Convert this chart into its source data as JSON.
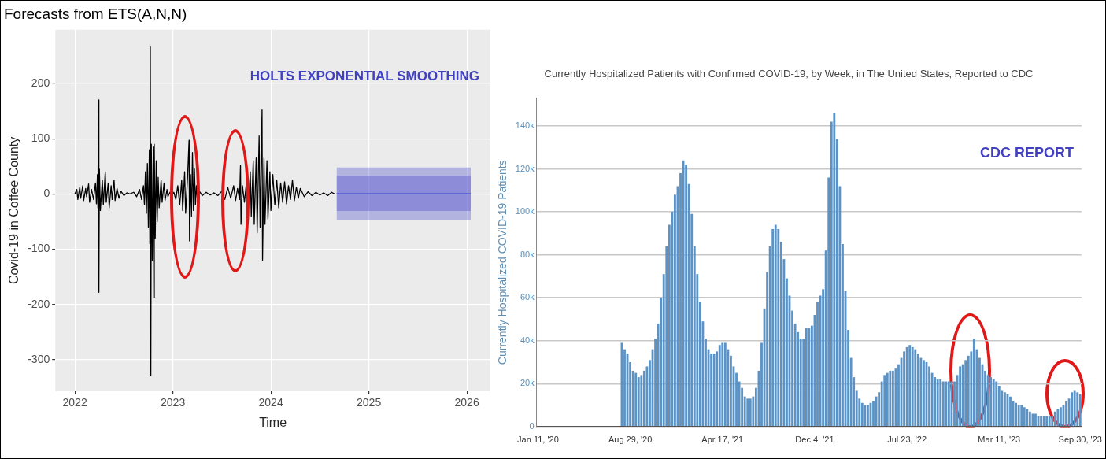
{
  "chart_data": [
    {
      "type": "line",
      "title": "Forecasts from ETS(A,N,N)",
      "xlabel": "Time",
      "ylabel": "Covid-19 in Coffee County",
      "annotations": [
        "HOLTS EXPONENTIAL SMOOTHING"
      ],
      "xlim": [
        2021.8,
        2026.24
      ],
      "xticks": [
        2022,
        2023,
        2024,
        2025,
        2026
      ],
      "ylim": [
        -357,
        297
      ],
      "yticks": [
        -300,
        -200,
        -100,
        0,
        100,
        200
      ],
      "grid": true,
      "series": [
        {
          "color": "#000000",
          "x": [
            2022.0,
            2022.02,
            2022.03,
            2022.05,
            2022.06,
            2022.08,
            2022.09,
            2022.11,
            2022.12,
            2022.14,
            2022.15,
            2022.17,
            2022.19,
            2022.21,
            2022.22,
            2022.23,
            2022.235,
            2022.24,
            2022.245,
            2022.25,
            2022.26,
            2022.28,
            2022.29,
            2022.31,
            2022.32,
            2022.34,
            2022.35,
            2022.37,
            2022.38,
            2022.4,
            2022.41,
            2022.43,
            2022.45,
            2022.47,
            2022.5,
            2022.53,
            2022.56,
            2022.6,
            2022.63,
            2022.66,
            2022.68,
            2022.7,
            2022.71,
            2022.72,
            2022.73,
            2022.74,
            2022.75,
            2022.76,
            2022.765,
            2022.77,
            2022.775,
            2022.78,
            2022.79,
            2022.8,
            2022.805,
            2022.81,
            2022.82,
            2022.83,
            2022.84,
            2022.85,
            2022.86,
            2022.88,
            2022.89,
            2022.91,
            2022.92,
            2022.94,
            2022.95,
            2022.97,
            2022.99,
            2023.01,
            2023.03,
            2023.05,
            2023.07,
            2023.09,
            2023.1,
            2023.12,
            2023.13,
            2023.15,
            2023.165,
            2023.17,
            2023.18,
            2023.19,
            2023.2,
            2023.21,
            2023.22,
            2023.23,
            2023.24,
            2023.25,
            2023.27,
            2023.3,
            2023.34,
            2023.38,
            2023.42,
            2023.46,
            2023.5,
            2023.53,
            2023.56,
            2023.59,
            2023.62,
            2023.64,
            2023.66,
            2023.68,
            2023.69,
            2023.695,
            2023.71,
            2023.73,
            2023.75,
            2023.77,
            2023.79,
            2023.8,
            2023.82,
            2023.83,
            2023.85,
            2023.86,
            2023.88,
            2023.89,
            2023.91,
            2023.915,
            2023.93,
            2023.94,
            2023.96,
            2023.97,
            2023.99,
            2024.0,
            2024.02,
            2024.04,
            2024.06,
            2024.08,
            2024.1,
            2024.12,
            2024.14,
            2024.16,
            2024.18,
            2024.2,
            2024.22,
            2024.24,
            2024.26,
            2024.28,
            2024.3,
            2024.34,
            2024.38,
            2024.42,
            2024.46,
            2024.5,
            2024.54,
            2024.58,
            2024.62,
            2024.65
          ],
          "values": [
            0,
            8,
            -10,
            12,
            -8,
            15,
            -12,
            10,
            -5,
            18,
            -15,
            8,
            -10,
            20,
            -18,
            35,
            -25,
            170,
            -178,
            45,
            -30,
            25,
            -20,
            40,
            -15,
            20,
            -25,
            15,
            -10,
            25,
            -12,
            10,
            -8,
            5,
            -3,
            2,
            0,
            3,
            -5,
            8,
            -10,
            15,
            -20,
            40,
            -35,
            55,
            -60,
            80,
            -90,
            266,
            -329,
            90,
            -120,
            85,
            -187,
            90,
            -80,
            60,
            -50,
            30,
            -25,
            25,
            -15,
            20,
            -12,
            8,
            -5,
            3,
            -3,
            3,
            -10,
            15,
            -20,
            25,
            -30,
            40,
            -35,
            30,
            97,
            -85,
            35,
            -40,
            75,
            -30,
            45,
            -20,
            15,
            -8,
            5,
            -3,
            3,
            -2,
            2,
            -3,
            5,
            -10,
            12,
            -8,
            15,
            -12,
            10,
            -10,
            52,
            -55,
            15,
            -15,
            20,
            -25,
            40,
            -40,
            60,
            -55,
            65,
            -70,
            105,
            -60,
            152,
            -120,
            65,
            -55,
            60,
            -45,
            40,
            -30,
            35,
            -20,
            25,
            -25,
            20,
            -15,
            22,
            -18,
            15,
            -10,
            25,
            -12,
            12,
            -8,
            10,
            -5,
            4,
            -3,
            3,
            -2,
            2,
            -3,
            3,
            0
          ]
        },
        {
          "color": "#3232c8",
          "x": [
            2024.67,
            2026.04
          ],
          "values": [
            0,
            0
          ],
          "lower": [
            -48,
            -48
          ],
          "upper": [
            48,
            48
          ]
        },
        {
          "color": "#3232c8",
          "x": [
            2024.67,
            2026.04
          ],
          "values": [
            0,
            0
          ],
          "lower": [
            -31,
            -31
          ],
          "upper": [
            33,
            33
          ]
        }
      ]
    },
    {
      "type": "bar",
      "title": "Currently Hospitalized Patients with Confirmed COVID-19, by Week, in The United States, Reported to CDC",
      "ylabel": "Currently Hospitalized COVID-19 Patients",
      "annotations": [
        "CDC REPORT"
      ],
      "grid": "y",
      "categories": [
        "Jan 11, '20",
        null,
        null,
        null,
        null,
        null,
        null,
        null,
        null,
        null,
        null,
        null,
        null,
        null,
        null,
        null,
        null,
        null,
        null,
        null,
        null,
        null,
        null,
        null,
        null,
        null,
        null,
        null,
        null,
        null,
        null,
        null,
        null,
        "Aug 29, '20",
        null,
        null,
        null,
        null,
        null,
        null,
        null,
        null,
        null,
        null,
        null,
        null,
        null,
        null,
        null,
        null,
        null,
        null,
        null,
        null,
        null,
        null,
        null,
        null,
        null,
        null,
        null,
        null,
        null,
        null,
        null,
        null,
        "Apr 17, '21",
        null,
        null,
        null,
        null,
        null,
        null,
        null,
        null,
        null,
        null,
        null,
        null,
        null,
        null,
        null,
        null,
        null,
        null,
        null,
        null,
        null,
        null,
        null,
        null,
        null,
        null,
        null,
        null,
        null,
        null,
        null,
        null,
        "Dec 4, '21",
        null,
        null,
        null,
        null,
        null,
        null,
        null,
        null,
        null,
        null,
        null,
        null,
        null,
        null,
        null,
        null,
        null,
        null,
        null,
        null,
        null,
        null,
        null,
        null,
        null,
        null,
        null,
        null,
        null,
        null,
        null,
        null,
        "Jul 23, '22",
        null,
        null,
        null,
        null,
        null,
        null,
        null,
        null,
        null,
        null,
        null,
        null,
        null,
        null,
        null,
        null,
        null,
        null,
        null,
        null,
        null,
        null,
        null,
        null,
        null,
        null,
        null,
        null,
        null,
        null,
        null,
        null,
        "Mar 11, '23",
        null,
        null,
        null,
        null,
        null,
        null,
        null,
        null,
        null,
        null,
        null,
        null,
        null,
        null,
        null,
        null,
        null,
        null,
        null,
        null,
        null,
        null,
        null,
        null,
        null,
        null,
        null,
        null,
        "Sep 30, '23"
      ],
      "ylim": [
        0,
        153000
      ],
      "yticks": [
        {
          "value": 0,
          "label": "0"
        },
        {
          "value": 20000,
          "label": "20k"
        },
        {
          "value": 40000,
          "label": "40k"
        },
        {
          "value": 60000,
          "label": "60k"
        },
        {
          "value": 80000,
          "label": "80k"
        },
        {
          "value": 100000,
          "label": "100k"
        },
        {
          "value": 120000,
          "label": "120k"
        },
        {
          "value": 140000,
          "label": "140k"
        }
      ],
      "color": "#5b93c6",
      "values": [
        null,
        null,
        null,
        null,
        null,
        null,
        null,
        null,
        null,
        null,
        null,
        null,
        null,
        null,
        null,
        null,
        null,
        null,
        null,
        null,
        null,
        null,
        null,
        null,
        null,
        null,
        null,
        null,
        null,
        null,
        39000,
        36000,
        34000,
        30000,
        26000,
        25000,
        23000,
        24000,
        26000,
        28000,
        31000,
        36000,
        41000,
        48000,
        60000,
        71000,
        84000,
        94000,
        100000,
        108000,
        112000,
        118000,
        124000,
        122000,
        113000,
        99000,
        84000,
        71000,
        58000,
        49000,
        41000,
        36000,
        34000,
        34000,
        35000,
        38000,
        39000,
        39000,
        36000,
        33000,
        28000,
        25000,
        21000,
        18000,
        14000,
        13000,
        13000,
        14000,
        18000,
        26000,
        39000,
        55000,
        72000,
        84000,
        92000,
        94000,
        92000,
        86000,
        78000,
        69000,
        61000,
        54000,
        48000,
        44000,
        41000,
        41000,
        46000,
        46000,
        47000,
        52000,
        58000,
        61000,
        64000,
        82000,
        116000,
        142000,
        146000,
        134000,
        112000,
        85000,
        63000,
        45000,
        32000,
        23000,
        17000,
        13000,
        11000,
        10000,
        10000,
        11000,
        12000,
        14000,
        16000,
        21000,
        24000,
        25000,
        26000,
        26000,
        27000,
        29000,
        32000,
        35000,
        37000,
        38000,
        37000,
        36000,
        34000,
        32000,
        31000,
        30000,
        28000,
        25000,
        23000,
        22000,
        22000,
        21000,
        21000,
        21000,
        21000,
        21000,
        24000,
        28000,
        29000,
        31000,
        33000,
        35000,
        41000,
        36000,
        32000,
        29000,
        26000,
        24000,
        23000,
        22000,
        21000,
        19000,
        17000,
        16000,
        15000,
        14000,
        12000,
        11000,
        10000,
        10000,
        9000,
        8000,
        7000,
        6000,
        6000,
        5000,
        5000,
        5000,
        5000,
        5000,
        5000,
        7000,
        8000,
        9000,
        10000,
        12000,
        13000,
        16000,
        17000,
        16000,
        15000
      ]
    }
  ]
}
